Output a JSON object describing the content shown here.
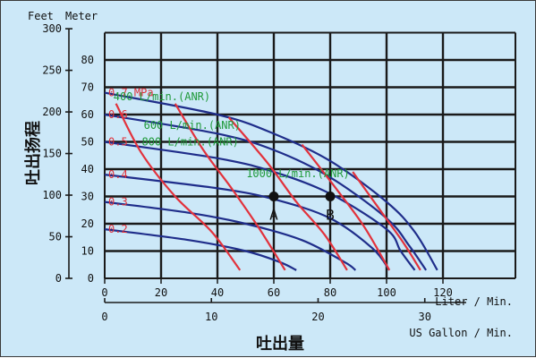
{
  "chart_data": {
    "type": "line",
    "y_units": {
      "feet": "Feet",
      "meter": "Meter"
    },
    "y_title": "吐出扬程",
    "x_title": "吐出量",
    "x_units": {
      "liter": "Liter / Min.",
      "usgallon": "US Gallon / Min."
    },
    "xlim_lpm": [
      0,
      140
    ],
    "ylim_m": [
      0,
      90
    ],
    "x_ticks_lpm": [
      "0",
      "20",
      "40",
      "60",
      "80",
      "100",
      "120"
    ],
    "x_ticks_gpm": [
      "0",
      "10",
      "20",
      "30"
    ],
    "y_ticks_m": [
      "0",
      "10",
      "20",
      "30",
      "40",
      "50",
      "60",
      "70",
      "80"
    ],
    "y_ticks_ft": [
      "0",
      "50",
      "100",
      "150",
      "200",
      "250",
      "300"
    ],
    "pressure_curves": [
      {
        "label": "0.7 MPa",
        "points": [
          [
            0,
            68
          ],
          [
            40,
            60
          ],
          [
            60,
            53
          ],
          [
            80,
            43
          ],
          [
            100,
            28
          ],
          [
            110,
            17
          ],
          [
            118,
            3
          ]
        ]
      },
      {
        "label": "0.6",
        "points": [
          [
            0,
            60
          ],
          [
            40,
            53
          ],
          [
            60,
            47
          ],
          [
            80,
            37
          ],
          [
            100,
            22
          ],
          [
            108,
            12
          ],
          [
            114,
            3
          ]
        ]
      },
      {
        "label": "0.5",
        "points": [
          [
            0,
            50
          ],
          [
            40,
            44
          ],
          [
            60,
            39
          ],
          [
            80,
            31
          ],
          [
            100,
            18
          ],
          [
            105,
            10
          ],
          [
            110,
            3
          ]
        ]
      },
      {
        "label": "0.4",
        "points": [
          [
            0,
            38
          ],
          [
            40,
            33
          ],
          [
            60,
            29
          ],
          [
            80,
            22
          ],
          [
            95,
            11
          ],
          [
            101,
            3
          ]
        ]
      },
      {
        "label": "0.3",
        "points": [
          [
            0,
            28
          ],
          [
            30,
            24
          ],
          [
            50,
            20
          ],
          [
            70,
            14
          ],
          [
            85,
            6
          ],
          [
            89,
            3
          ]
        ]
      },
      {
        "label": "0.2",
        "points": [
          [
            0,
            18
          ],
          [
            30,
            14
          ],
          [
            50,
            10
          ],
          [
            62,
            6
          ],
          [
            68,
            3
          ]
        ]
      }
    ],
    "air_consumption_curves": [
      {
        "label": "400 L/min.(ANR)",
        "points": [
          [
            25,
            64
          ],
          [
            35,
            47
          ],
          [
            45,
            33
          ],
          [
            55,
            18
          ],
          [
            64,
            3
          ]
        ]
      },
      {
        "label": "600 L/min.(ANR)",
        "points": [
          [
            44,
            59
          ],
          [
            58,
            42
          ],
          [
            68,
            28
          ],
          [
            78,
            16
          ],
          [
            86,
            3
          ]
        ]
      },
      {
        "label": "800 L/min.(ANR)",
        "points": [
          [
            70,
            49
          ],
          [
            82,
            33
          ],
          [
            92,
            19
          ],
          [
            101,
            3
          ]
        ]
      },
      {
        "label": "1000 L/min.(ANR)",
        "points": [
          [
            88,
            39
          ],
          [
            97,
            26
          ],
          [
            106,
            13
          ],
          [
            112,
            3
          ]
        ]
      },
      {
        "label": "200 L/min.(ANR)",
        "points": [
          [
            4,
            64
          ],
          [
            13,
            46
          ],
          [
            25,
            30
          ],
          [
            38,
            17
          ],
          [
            48,
            3
          ]
        ]
      }
    ],
    "markers": [
      {
        "label": "A",
        "x": 60,
        "y": 30
      },
      {
        "label": "B",
        "x": 80,
        "y": 30
      }
    ],
    "grid": true
  }
}
